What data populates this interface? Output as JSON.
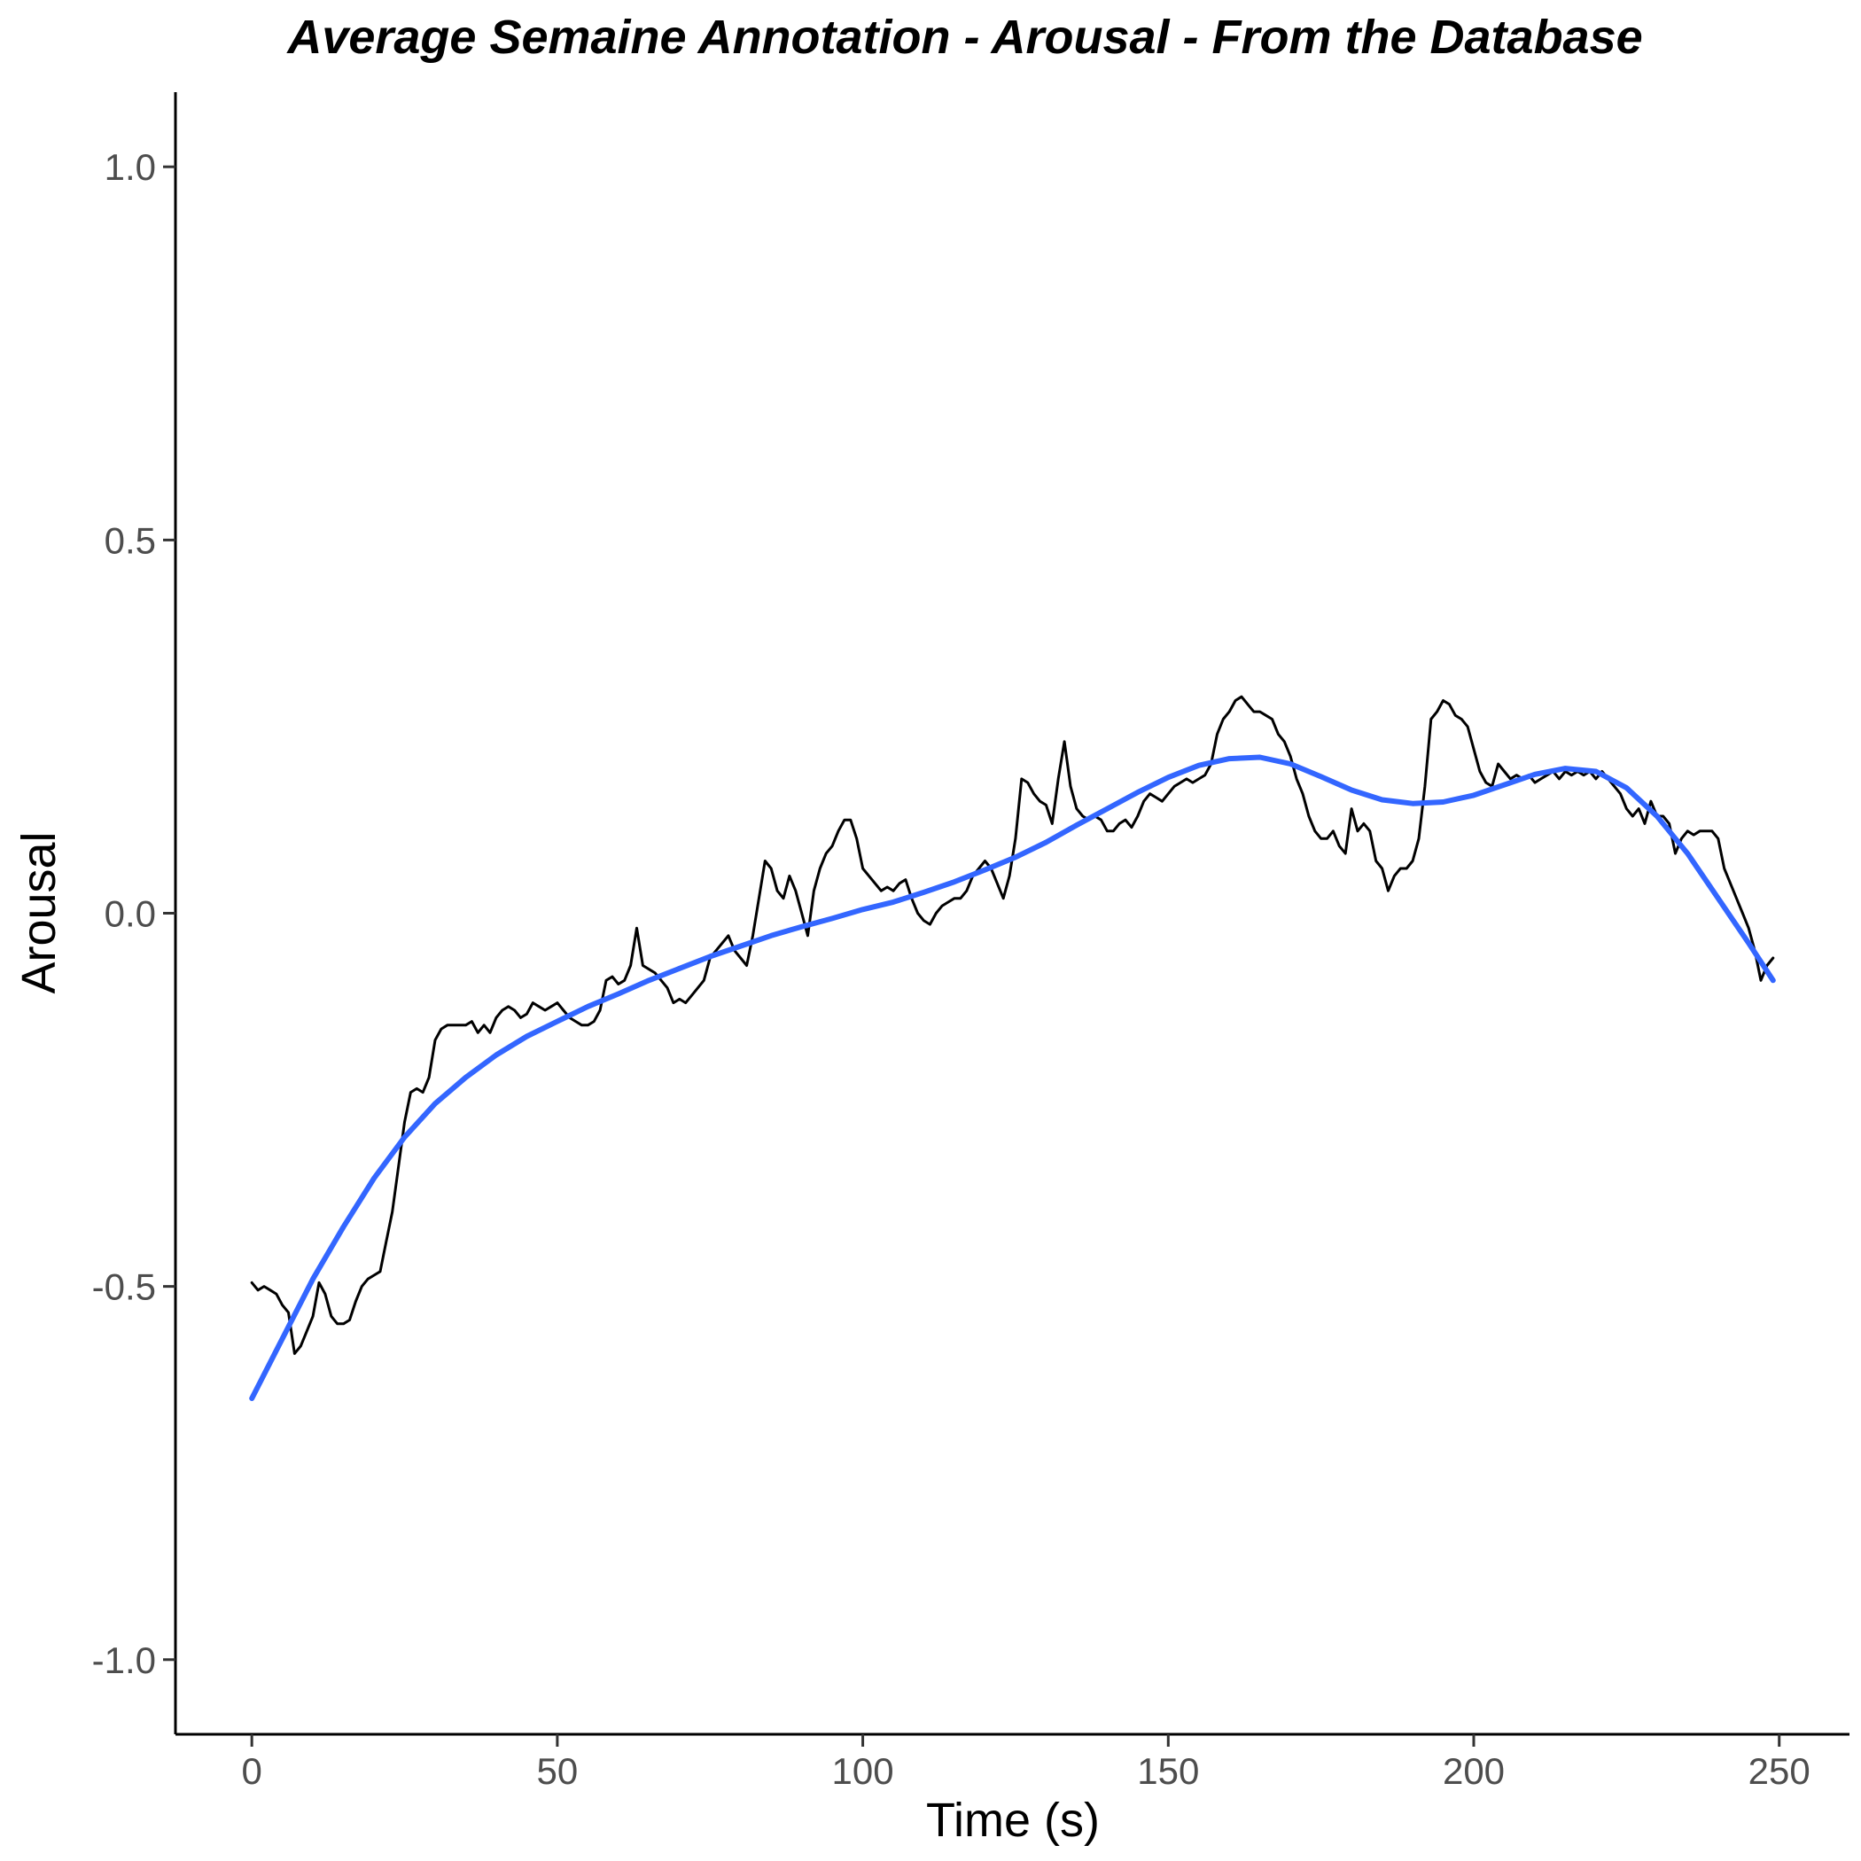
{
  "chart_data": {
    "type": "line",
    "title": "Average Semaine Annotation - Arousal - From the Database",
    "xlabel": "Time (s)",
    "ylabel": "Arousal",
    "xlim": [
      -12.5,
      261.5
    ],
    "ylim": [
      -1.1,
      1.1
    ],
    "x_ticks": [
      0,
      50,
      100,
      150,
      200,
      250
    ],
    "x_tick_labels": [
      "0",
      "50",
      "100",
      "150",
      "200",
      "250"
    ],
    "y_ticks": [
      -1.0,
      -0.5,
      0.0,
      0.5,
      1.0
    ],
    "y_tick_labels": [
      "-1.0",
      "-0.5",
      "0.0",
      "0.5",
      "1.0"
    ],
    "grid": false,
    "legend": "none",
    "series": [
      {
        "kind": "raw",
        "color": "#000000",
        "points": [
          [
            0.0,
            -0.495
          ],
          [
            1.0,
            -0.505
          ],
          [
            2.0,
            -0.5
          ],
          [
            3.0,
            -0.505
          ],
          [
            4.0,
            -0.51
          ],
          [
            5.0,
            -0.525
          ],
          [
            6.0,
            -0.535
          ],
          [
            7.0,
            -0.59
          ],
          [
            8.0,
            -0.58
          ],
          [
            9.0,
            -0.56
          ],
          [
            10.0,
            -0.54
          ],
          [
            11.0,
            -0.495
          ],
          [
            12.0,
            -0.51
          ],
          [
            13.0,
            -0.54
          ],
          [
            14.0,
            -0.55
          ],
          [
            15.0,
            -0.55
          ],
          [
            16.0,
            -0.545
          ],
          [
            17.0,
            -0.52
          ],
          [
            18.0,
            -0.5
          ],
          [
            19.0,
            -0.49
          ],
          [
            20.0,
            -0.485
          ],
          [
            21.0,
            -0.48
          ],
          [
            22.0,
            -0.44
          ],
          [
            23.0,
            -0.4
          ],
          [
            24.0,
            -0.34
          ],
          [
            25.0,
            -0.28
          ],
          [
            26.0,
            -0.24
          ],
          [
            27.0,
            -0.235
          ],
          [
            28.0,
            -0.24
          ],
          [
            29.0,
            -0.22
          ],
          [
            30.0,
            -0.17
          ],
          [
            31.0,
            -0.155
          ],
          [
            32.0,
            -0.15
          ],
          [
            33.0,
            -0.15
          ],
          [
            34.0,
            -0.15
          ],
          [
            35.0,
            -0.15
          ],
          [
            36.0,
            -0.145
          ],
          [
            37.0,
            -0.16
          ],
          [
            38.0,
            -0.15
          ],
          [
            39.0,
            -0.16
          ],
          [
            40.0,
            -0.14
          ],
          [
            41.0,
            -0.13
          ],
          [
            42.0,
            -0.125
          ],
          [
            43.0,
            -0.13
          ],
          [
            44.0,
            -0.14
          ],
          [
            45.0,
            -0.135
          ],
          [
            46.0,
            -0.12
          ],
          [
            47.0,
            -0.125
          ],
          [
            48.0,
            -0.13
          ],
          [
            49.0,
            -0.125
          ],
          [
            50.0,
            -0.12
          ],
          [
            51.0,
            -0.13
          ],
          [
            52.0,
            -0.14
          ],
          [
            53.0,
            -0.145
          ],
          [
            54.0,
            -0.15
          ],
          [
            55.0,
            -0.15
          ],
          [
            56.0,
            -0.145
          ],
          [
            57.0,
            -0.13
          ],
          [
            58.0,
            -0.09
          ],
          [
            59.0,
            -0.085
          ],
          [
            60.0,
            -0.095
          ],
          [
            61.0,
            -0.09
          ],
          [
            62.0,
            -0.07
          ],
          [
            63.0,
            -0.02
          ],
          [
            64.0,
            -0.07
          ],
          [
            65.0,
            -0.075
          ],
          [
            66.0,
            -0.08
          ],
          [
            67.0,
            -0.09
          ],
          [
            68.0,
            -0.1
          ],
          [
            69.0,
            -0.12
          ],
          [
            70.0,
            -0.115
          ],
          [
            71.0,
            -0.12
          ],
          [
            72.0,
            -0.11
          ],
          [
            73.0,
            -0.1
          ],
          [
            74.0,
            -0.09
          ],
          [
            75.0,
            -0.06
          ],
          [
            76.0,
            -0.05
          ],
          [
            77.0,
            -0.04
          ],
          [
            78.0,
            -0.03
          ],
          [
            79.0,
            -0.05
          ],
          [
            80.0,
            -0.06
          ],
          [
            81.0,
            -0.07
          ],
          [
            82.0,
            -0.03
          ],
          [
            83.0,
            0.02
          ],
          [
            84.0,
            0.07
          ],
          [
            85.0,
            0.06
          ],
          [
            86.0,
            0.03
          ],
          [
            87.0,
            0.02
          ],
          [
            88.0,
            0.05
          ],
          [
            89.0,
            0.03
          ],
          [
            90.0,
            0.0
          ],
          [
            91.0,
            -0.03
          ],
          [
            92.0,
            0.03
          ],
          [
            93.0,
            0.06
          ],
          [
            94.0,
            0.08
          ],
          [
            95.0,
            0.09
          ],
          [
            96.0,
            0.11
          ],
          [
            97.0,
            0.125
          ],
          [
            98.0,
            0.125
          ],
          [
            99.0,
            0.1
          ],
          [
            100.0,
            0.06
          ],
          [
            101.0,
            0.05
          ],
          [
            102.0,
            0.04
          ],
          [
            103.0,
            0.03
          ],
          [
            104.0,
            0.035
          ],
          [
            105.0,
            0.03
          ],
          [
            106.0,
            0.04
          ],
          [
            107.0,
            0.045
          ],
          [
            108.0,
            0.02
          ],
          [
            109.0,
            0.0
          ],
          [
            110.0,
            -0.01
          ],
          [
            111.0,
            -0.015
          ],
          [
            112.0,
            0.0
          ],
          [
            113.0,
            0.01
          ],
          [
            114.0,
            0.015
          ],
          [
            115.0,
            0.02
          ],
          [
            116.0,
            0.02
          ],
          [
            117.0,
            0.03
          ],
          [
            118.0,
            0.05
          ],
          [
            119.0,
            0.06
          ],
          [
            120.0,
            0.07
          ],
          [
            121.0,
            0.06
          ],
          [
            122.0,
            0.04
          ],
          [
            123.0,
            0.02
          ],
          [
            124.0,
            0.05
          ],
          [
            125.0,
            0.1
          ],
          [
            126.0,
            0.18
          ],
          [
            127.0,
            0.175
          ],
          [
            128.0,
            0.16
          ],
          [
            129.0,
            0.15
          ],
          [
            130.0,
            0.145
          ],
          [
            131.0,
            0.12
          ],
          [
            132.0,
            0.18
          ],
          [
            133.0,
            0.23
          ],
          [
            134.0,
            0.17
          ],
          [
            135.0,
            0.14
          ],
          [
            136.0,
            0.13
          ],
          [
            137.0,
            0.125
          ],
          [
            138.0,
            0.13
          ],
          [
            139.0,
            0.125
          ],
          [
            140.0,
            0.11
          ],
          [
            141.0,
            0.11
          ],
          [
            142.0,
            0.12
          ],
          [
            143.0,
            0.125
          ],
          [
            144.0,
            0.115
          ],
          [
            145.0,
            0.13
          ],
          [
            146.0,
            0.15
          ],
          [
            147.0,
            0.16
          ],
          [
            148.0,
            0.155
          ],
          [
            149.0,
            0.15
          ],
          [
            150.0,
            0.16
          ],
          [
            151.0,
            0.17
          ],
          [
            152.0,
            0.175
          ],
          [
            153.0,
            0.18
          ],
          [
            154.0,
            0.175
          ],
          [
            155.0,
            0.18
          ],
          [
            156.0,
            0.185
          ],
          [
            157.0,
            0.2
          ],
          [
            158.0,
            0.24
          ],
          [
            159.0,
            0.26
          ],
          [
            160.0,
            0.27
          ],
          [
            161.0,
            0.285
          ],
          [
            162.0,
            0.29
          ],
          [
            163.0,
            0.28
          ],
          [
            164.0,
            0.27
          ],
          [
            165.0,
            0.27
          ],
          [
            166.0,
            0.265
          ],
          [
            167.0,
            0.26
          ],
          [
            168.0,
            0.24
          ],
          [
            169.0,
            0.23
          ],
          [
            170.0,
            0.21
          ],
          [
            171.0,
            0.18
          ],
          [
            172.0,
            0.16
          ],
          [
            173.0,
            0.13
          ],
          [
            174.0,
            0.11
          ],
          [
            175.0,
            0.1
          ],
          [
            176.0,
            0.1
          ],
          [
            177.0,
            0.11
          ],
          [
            178.0,
            0.09
          ],
          [
            179.0,
            0.08
          ],
          [
            180.0,
            0.14
          ],
          [
            181.0,
            0.11
          ],
          [
            182.0,
            0.12
          ],
          [
            183.0,
            0.11
          ],
          [
            184.0,
            0.07
          ],
          [
            185.0,
            0.06
          ],
          [
            186.0,
            0.03
          ],
          [
            187.0,
            0.05
          ],
          [
            188.0,
            0.06
          ],
          [
            189.0,
            0.06
          ],
          [
            190.0,
            0.07
          ],
          [
            191.0,
            0.1
          ],
          [
            192.0,
            0.17
          ],
          [
            193.0,
            0.26
          ],
          [
            194.0,
            0.27
          ],
          [
            195.0,
            0.285
          ],
          [
            196.0,
            0.28
          ],
          [
            197.0,
            0.265
          ],
          [
            198.0,
            0.26
          ],
          [
            199.0,
            0.25
          ],
          [
            200.0,
            0.22
          ],
          [
            201.0,
            0.19
          ],
          [
            202.0,
            0.175
          ],
          [
            203.0,
            0.17
          ],
          [
            204.0,
            0.2
          ],
          [
            205.0,
            0.19
          ],
          [
            206.0,
            0.18
          ],
          [
            207.0,
            0.185
          ],
          [
            208.0,
            0.18
          ],
          [
            209.0,
            0.185
          ],
          [
            210.0,
            0.175
          ],
          [
            211.0,
            0.18
          ],
          [
            212.0,
            0.185
          ],
          [
            213.0,
            0.19
          ],
          [
            214.0,
            0.18
          ],
          [
            215.0,
            0.19
          ],
          [
            216.0,
            0.185
          ],
          [
            217.0,
            0.19
          ],
          [
            218.0,
            0.185
          ],
          [
            219.0,
            0.19
          ],
          [
            220.0,
            0.18
          ],
          [
            221.0,
            0.19
          ],
          [
            222.0,
            0.18
          ],
          [
            223.0,
            0.17
          ],
          [
            224.0,
            0.16
          ],
          [
            225.0,
            0.14
          ],
          [
            226.0,
            0.13
          ],
          [
            227.0,
            0.14
          ],
          [
            228.0,
            0.12
          ],
          [
            229.0,
            0.15
          ],
          [
            230.0,
            0.13
          ],
          [
            231.0,
            0.13
          ],
          [
            232.0,
            0.12
          ],
          [
            233.0,
            0.08
          ],
          [
            234.0,
            0.1
          ],
          [
            235.0,
            0.11
          ],
          [
            236.0,
            0.105
          ],
          [
            237.0,
            0.11
          ],
          [
            238.0,
            0.11
          ],
          [
            239.0,
            0.11
          ],
          [
            240.0,
            0.1
          ],
          [
            241.0,
            0.06
          ],
          [
            242.0,
            0.04
          ],
          [
            243.0,
            0.02
          ],
          [
            244.0,
            0.0
          ],
          [
            245.0,
            -0.02
          ],
          [
            246.0,
            -0.05
          ],
          [
            247.0,
            -0.09
          ],
          [
            248.0,
            -0.07
          ],
          [
            249.0,
            -0.06
          ]
        ]
      },
      {
        "kind": "smoothed",
        "color": "#3366FF",
        "points": [
          [
            0.0,
            -0.65
          ],
          [
            5.0,
            -0.57
          ],
          [
            10.0,
            -0.49
          ],
          [
            15.0,
            -0.42
          ],
          [
            20.0,
            -0.355
          ],
          [
            25.0,
            -0.3
          ],
          [
            30.0,
            -0.255
          ],
          [
            35.0,
            -0.22
          ],
          [
            40.0,
            -0.19
          ],
          [
            45.0,
            -0.165
          ],
          [
            50.0,
            -0.145
          ],
          [
            55.0,
            -0.125
          ],
          [
            60.0,
            -0.108
          ],
          [
            65.0,
            -0.09
          ],
          [
            70.0,
            -0.074
          ],
          [
            75.0,
            -0.058
          ],
          [
            80.0,
            -0.044
          ],
          [
            85.0,
            -0.03
          ],
          [
            90.0,
            -0.018
          ],
          [
            95.0,
            -0.007
          ],
          [
            100.0,
            0.005
          ],
          [
            105.0,
            0.015
          ],
          [
            110.0,
            0.028
          ],
          [
            115.0,
            0.042
          ],
          [
            120.0,
            0.058
          ],
          [
            125.0,
            0.075
          ],
          [
            130.0,
            0.095
          ],
          [
            135.0,
            0.118
          ],
          [
            140.0,
            0.14
          ],
          [
            145.0,
            0.162
          ],
          [
            150.0,
            0.182
          ],
          [
            155.0,
            0.198
          ],
          [
            160.0,
            0.207
          ],
          [
            165.0,
            0.209
          ],
          [
            170.0,
            0.2
          ],
          [
            175.0,
            0.183
          ],
          [
            180.0,
            0.165
          ],
          [
            185.0,
            0.152
          ],
          [
            190.0,
            0.147
          ],
          [
            195.0,
            0.149
          ],
          [
            200.0,
            0.158
          ],
          [
            205.0,
            0.172
          ],
          [
            210.0,
            0.186
          ],
          [
            215.0,
            0.194
          ],
          [
            220.0,
            0.19
          ],
          [
            225.0,
            0.168
          ],
          [
            230.0,
            0.13
          ],
          [
            235.0,
            0.08
          ],
          [
            240.0,
            0.02
          ],
          [
            245.0,
            -0.04
          ],
          [
            249.0,
            -0.09
          ]
        ]
      }
    ]
  }
}
